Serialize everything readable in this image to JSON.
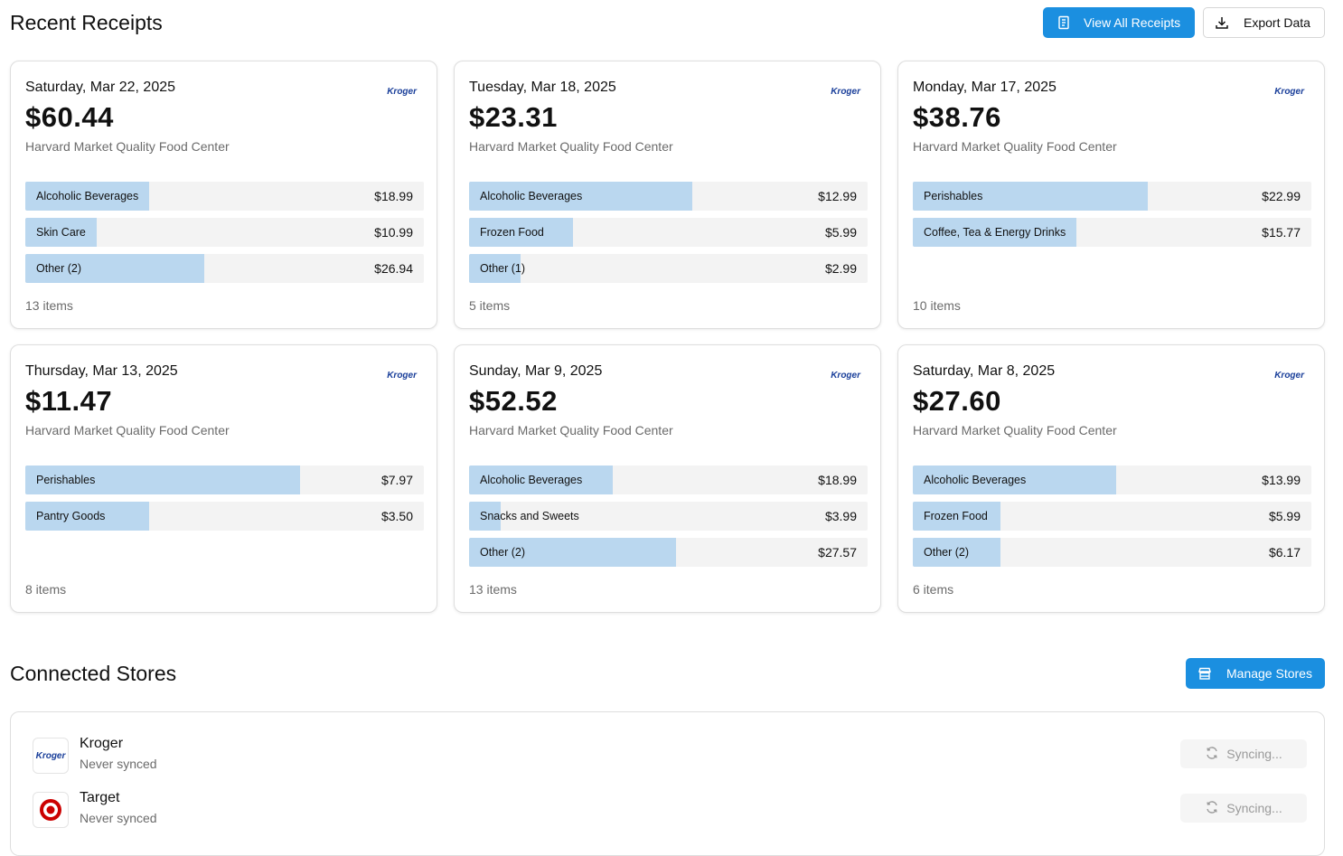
{
  "recent": {
    "title": "Recent Receipts",
    "view_all_label": "View All Receipts",
    "export_label": "Export Data"
  },
  "receipts": [
    {
      "date": "Saturday, Mar 22, 2025",
      "total": "$60.44",
      "store": "Harvard Market Quality Food Center",
      "logo_text": "Kroger",
      "items": "13 items",
      "categories": [
        {
          "label": "Alcoholic Beverages",
          "amount": "$18.99",
          "share": 0.31
        },
        {
          "label": "Skin Care",
          "amount": "$10.99",
          "share": 0.18
        },
        {
          "label": "Other (2)",
          "amount": "$26.94",
          "share": 0.45
        }
      ]
    },
    {
      "date": "Tuesday, Mar 18, 2025",
      "total": "$23.31",
      "store": "Harvard Market Quality Food Center",
      "logo_text": "Kroger",
      "items": "5 items",
      "categories": [
        {
          "label": "Alcoholic Beverages",
          "amount": "$12.99",
          "share": 0.56
        },
        {
          "label": "Frozen Food",
          "amount": "$5.99",
          "share": 0.26
        },
        {
          "label": "Other (1)",
          "amount": "$2.99",
          "share": 0.13
        }
      ]
    },
    {
      "date": "Monday, Mar 17, 2025",
      "total": "$38.76",
      "store": "Harvard Market Quality Food Center",
      "logo_text": "Kroger",
      "items": "10 items",
      "categories": [
        {
          "label": "Perishables",
          "amount": "$22.99",
          "share": 0.59
        },
        {
          "label": "Coffee, Tea & Energy Drinks",
          "amount": "$15.77",
          "share": 0.41
        }
      ]
    },
    {
      "date": "Thursday, Mar 13, 2025",
      "total": "$11.47",
      "store": "Harvard Market Quality Food Center",
      "logo_text": "Kroger",
      "items": "8 items",
      "categories": [
        {
          "label": "Perishables",
          "amount": "$7.97",
          "share": 0.69
        },
        {
          "label": "Pantry Goods",
          "amount": "$3.50",
          "share": 0.31
        }
      ]
    },
    {
      "date": "Sunday, Mar 9, 2025",
      "total": "$52.52",
      "store": "Harvard Market Quality Food Center",
      "logo_text": "Kroger",
      "items": "13 items",
      "categories": [
        {
          "label": "Alcoholic Beverages",
          "amount": "$18.99",
          "share": 0.36
        },
        {
          "label": "Snacks and Sweets",
          "amount": "$3.99",
          "share": 0.08
        },
        {
          "label": "Other (2)",
          "amount": "$27.57",
          "share": 0.52
        }
      ]
    },
    {
      "date": "Saturday, Mar 8, 2025",
      "total": "$27.60",
      "store": "Harvard Market Quality Food Center",
      "logo_text": "Kroger",
      "items": "6 items",
      "categories": [
        {
          "label": "Alcoholic Beverages",
          "amount": "$13.99",
          "share": 0.51
        },
        {
          "label": "Frozen Food",
          "amount": "$5.99",
          "share": 0.22
        },
        {
          "label": "Other (2)",
          "amount": "$6.17",
          "share": 0.22
        }
      ]
    }
  ],
  "connected": {
    "title": "Connected Stores",
    "manage_label": "Manage Stores",
    "stores": [
      {
        "name": "Kroger",
        "status": "Never synced",
        "sync_label": "Syncing...",
        "logo_text": "Kroger"
      },
      {
        "name": "Target",
        "status": "Never synced",
        "sync_label": "Syncing..."
      }
    ]
  },
  "colors": {
    "accent": "#1b8fe0",
    "bar_fill": "#bad7ef",
    "bar_track": "#f3f3f3",
    "kroger_blue": "#1a3f9a",
    "target_red": "#cc0000"
  }
}
